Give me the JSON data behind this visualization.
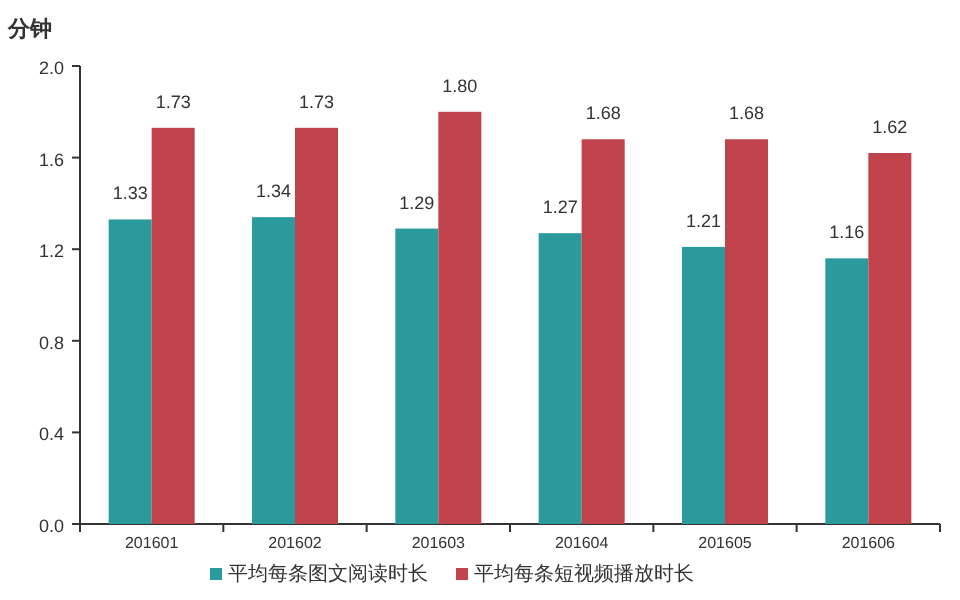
{
  "chart_data": {
    "type": "bar",
    "ylabel": "分钟",
    "categories": [
      "201601",
      "201602",
      "201603",
      "201604",
      "201605",
      "201606"
    ],
    "series": [
      {
        "name": "平均每条图文阅读时长",
        "color": "#2a9a9c",
        "values": [
          1.33,
          1.34,
          1.29,
          1.27,
          1.21,
          1.16
        ],
        "value_labels": [
          "1.33",
          "1.34",
          "1.29",
          "1.27",
          "1.21",
          "1.16"
        ]
      },
      {
        "name": "平均每条短视频播放时长",
        "color": "#c0424b",
        "values": [
          1.73,
          1.73,
          1.8,
          1.68,
          1.68,
          1.62
        ],
        "value_labels": [
          "1.73",
          "1.73",
          "1.80",
          "1.68",
          "1.68",
          "1.62"
        ]
      }
    ],
    "ylim": [
      0,
      2
    ],
    "yticks": [
      {
        "value": 0,
        "label": "0.0"
      },
      0.4,
      0.8,
      1.2,
      1.6,
      {
        "value": 2,
        "label": "2.0"
      }
    ],
    "grid": false,
    "legend": "bottom"
  }
}
